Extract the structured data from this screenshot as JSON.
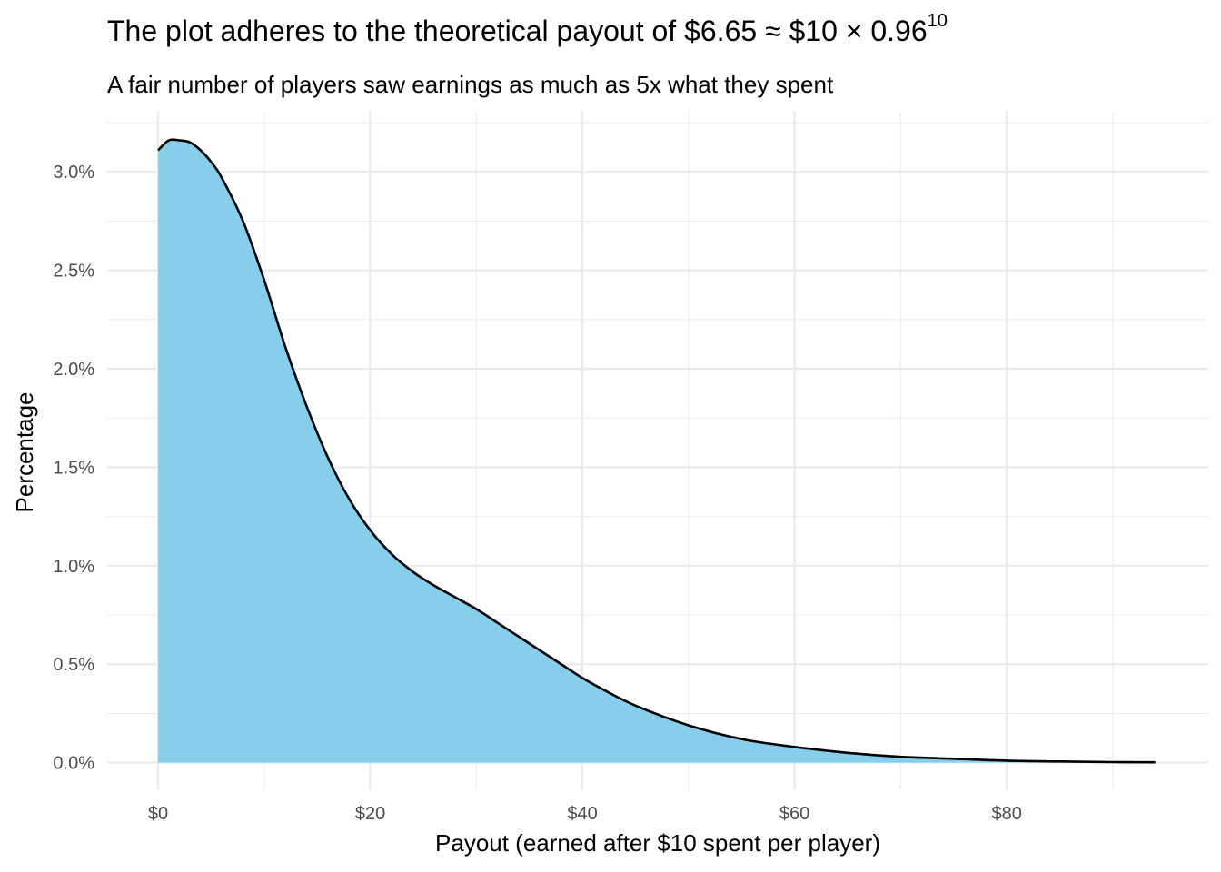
{
  "title": {
    "main": "The plot adheres to the theoretical payout of $6.65 ≈ $10 × 0.96",
    "superscript": "10"
  },
  "subtitle": "A fair number of players saw earnings as much as 5x what they spent",
  "chart_data": {
    "type": "area",
    "title": "The plot adheres to the theoretical payout of $6.65 ≈ $10 × 0.96^10",
    "subtitle": "A fair number of players saw earnings as much as 5x what they spent",
    "xlabel": "Payout (earned after $10 spent per player)",
    "ylabel": "Percentage",
    "xlim": [
      -4.8,
      99
    ],
    "ylim": [
      -0.0014,
      0.0331
    ],
    "x_ticks": [
      0,
      20,
      40,
      60,
      80
    ],
    "x_tick_labels": [
      "$0",
      "$20",
      "$40",
      "$60",
      "$80"
    ],
    "y_ticks": [
      0,
      0.005,
      0.01,
      0.015,
      0.02,
      0.025,
      0.03
    ],
    "y_tick_labels": [
      "0.0%",
      "0.5%",
      "1.0%",
      "1.5%",
      "2.0%",
      "2.5%",
      "3.0%"
    ],
    "grid": true,
    "fill_color": "#87CEEB",
    "line_color": "#000000",
    "x": [
      0,
      1,
      2,
      3,
      4,
      5,
      6,
      8,
      10,
      12,
      14,
      16,
      18,
      20,
      22,
      24,
      26,
      28,
      30,
      32,
      34,
      36,
      38,
      40,
      42,
      45,
      50,
      55,
      60,
      65,
      70,
      75,
      80,
      85,
      90,
      94
    ],
    "y": [
      0.0311,
      0.0316,
      0.0316,
      0.0315,
      0.0311,
      0.0305,
      0.0297,
      0.0275,
      0.0245,
      0.0211,
      0.0181,
      0.0155,
      0.0134,
      0.0118,
      0.0106,
      0.0097,
      0.009,
      0.0084,
      0.0078,
      0.0071,
      0.0064,
      0.0057,
      0.005,
      0.0043,
      0.0037,
      0.0029,
      0.0019,
      0.0012,
      0.0008,
      0.0005,
      0.0003,
      0.0002,
      0.0001,
      6e-05,
      3e-05,
      2e-05
    ]
  }
}
